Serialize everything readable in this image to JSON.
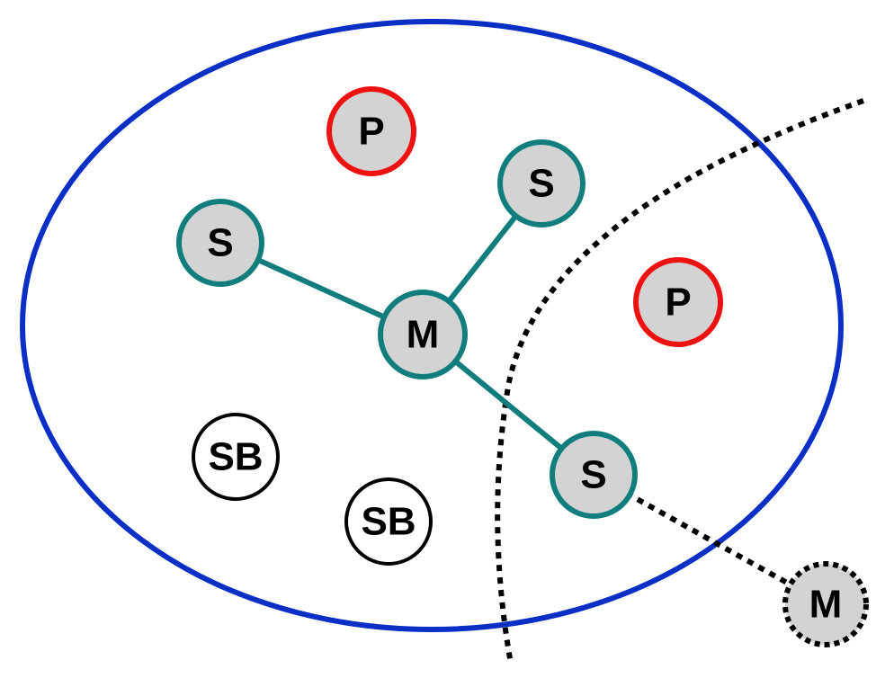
{
  "colors": {
    "piconet_outline": "#0a2fc4",
    "master_slave_link": "#127d7d",
    "parked_outline": "#ee1111",
    "standby_outline": "#000000",
    "node_fill": "#d3d3d3",
    "external_dotted": "#000000"
  },
  "nodes": {
    "parked_top": "P",
    "parked_right": "P",
    "slave_top": "S",
    "slave_left": "S",
    "master_center": "M",
    "slave_bottom": "S",
    "standby_left": "SB",
    "standby_bottom": "SB",
    "master_external": "M"
  }
}
